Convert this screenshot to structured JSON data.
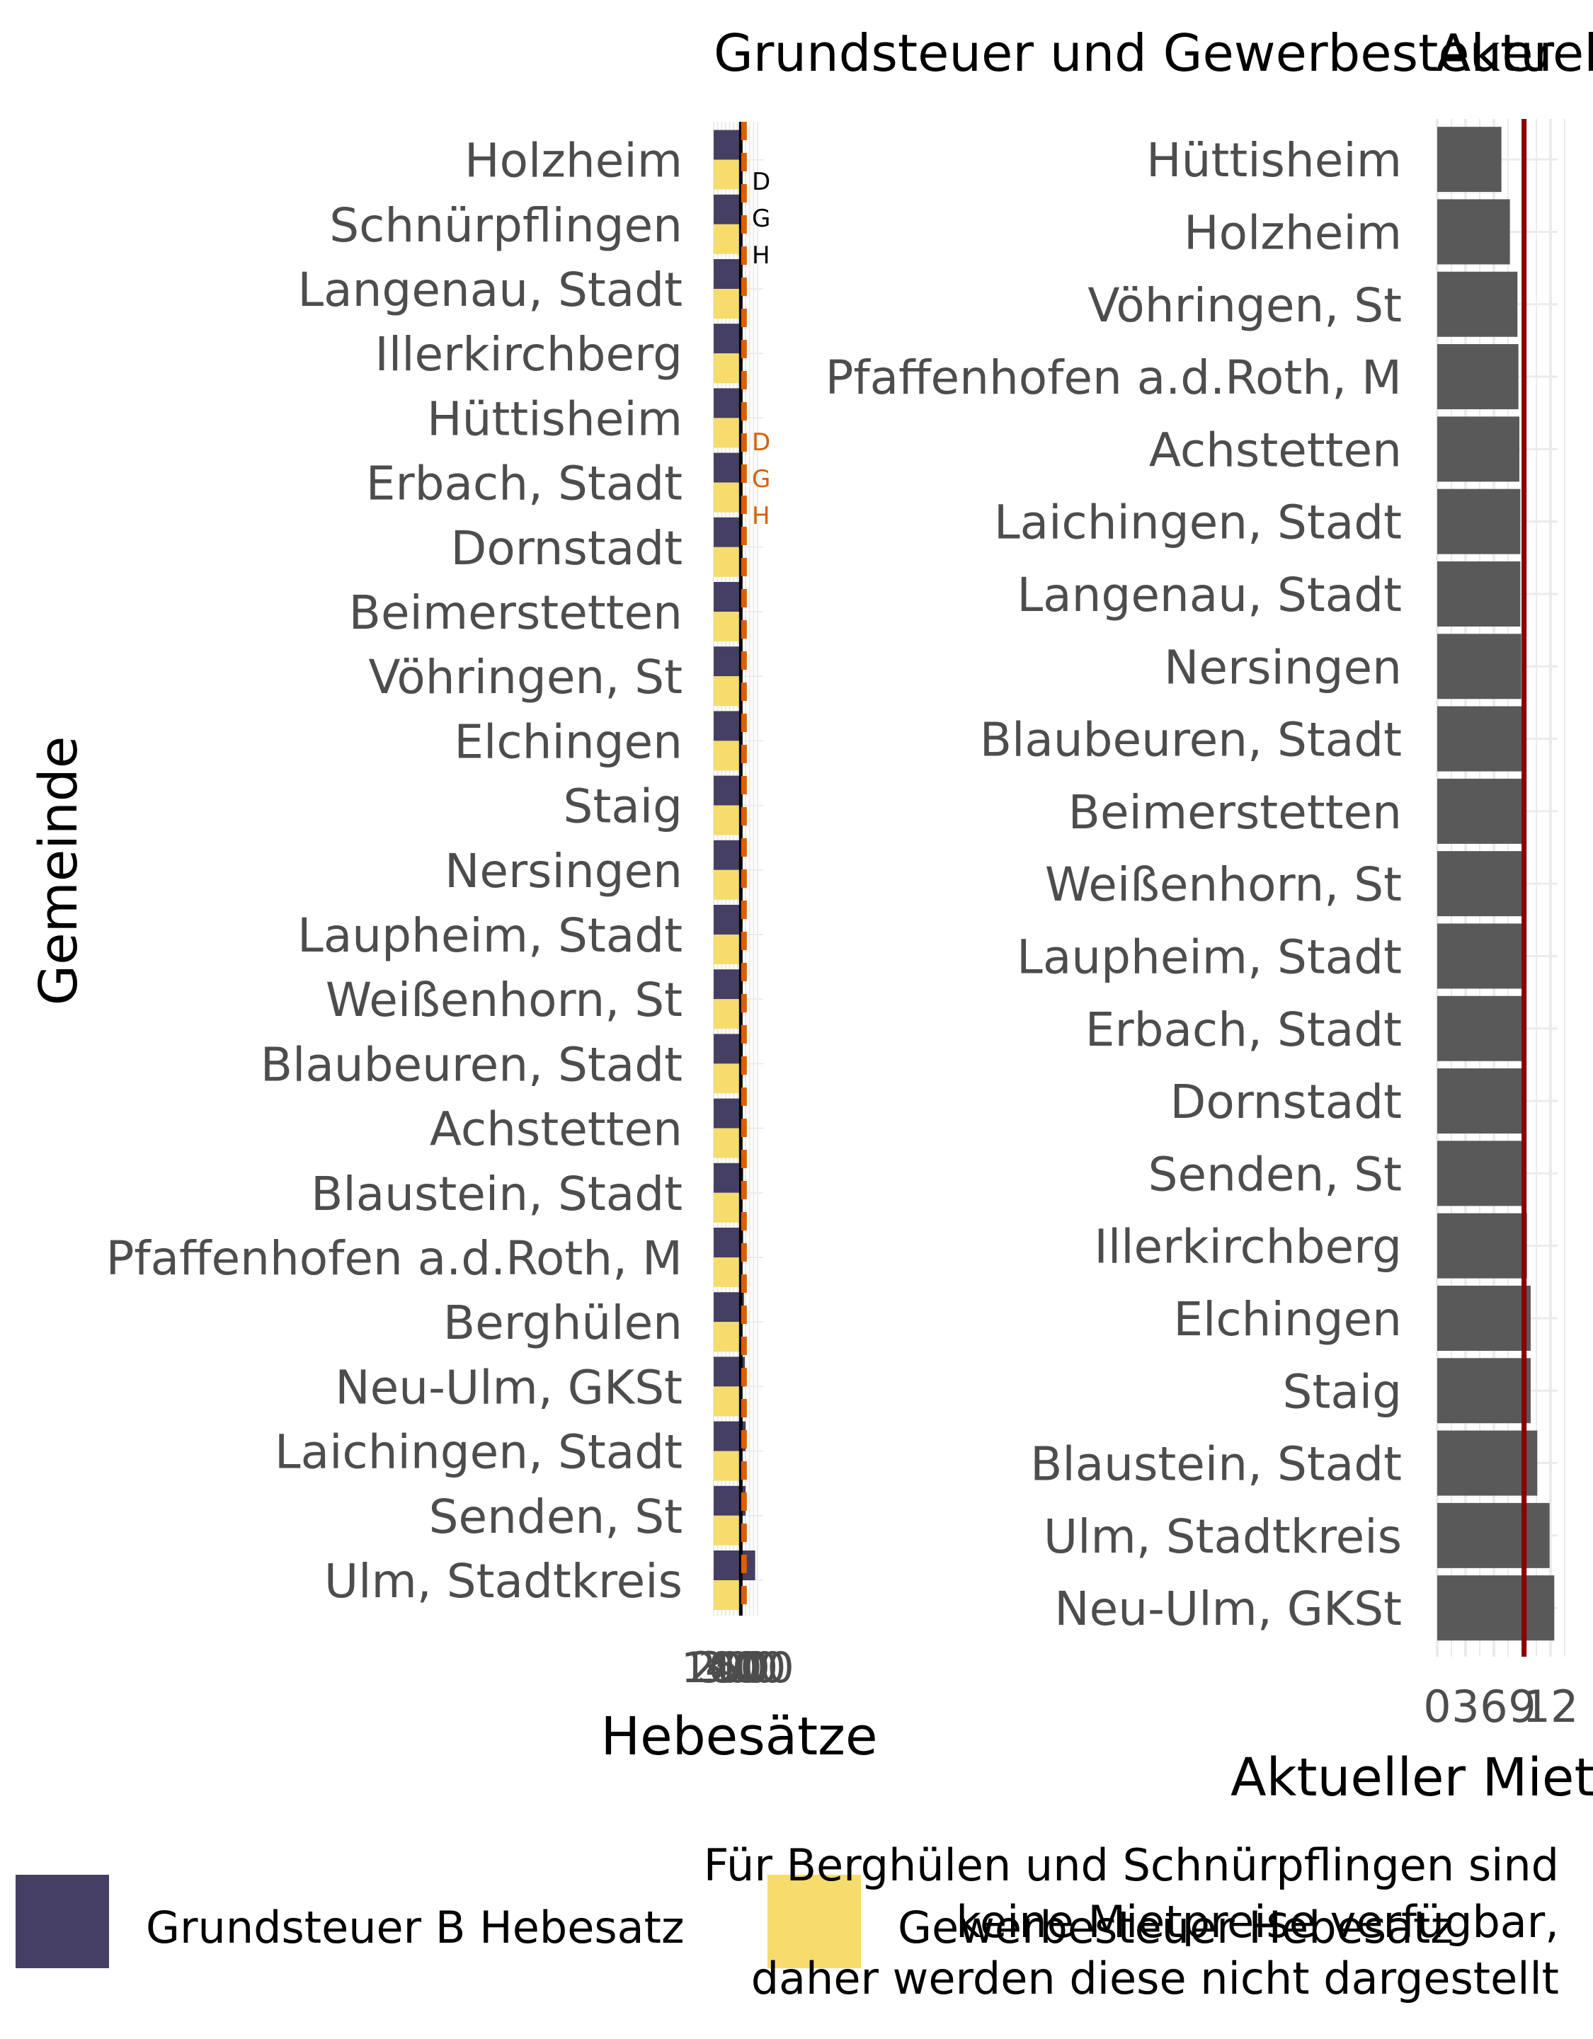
{
  "chart_data": [
    {
      "type": "bar",
      "orientation": "horizontal",
      "title": "Grundsteuer und Gewerbesteuer",
      "xlabel": "Hebesätze",
      "ylabel": "Gemeinde",
      "xlim": [
        0,
        550
      ],
      "x_tick_labels": [
        "100",
        "200",
        "300",
        "400",
        "500"
      ],
      "categories": [
        "Holzheim",
        "Schnürpflingen",
        "Langenau, Stadt",
        "Illerkirchberg",
        "Hüttisheim",
        "Erbach, Stadt",
        "Dornstadt",
        "Beimerstetten",
        "Vöhringen, St",
        "Elchingen",
        "Staig",
        "Nersingen",
        "Laupheim, Stadt",
        "Weißenhorn, St",
        "Blaubeuren, Stadt",
        "Achstetten",
        "Blaustein, Stadt",
        "Pfaffenhofen a.d.Roth, M",
        "Berghülen",
        "Neu-Ulm, GKSt",
        "Laichingen, Stadt",
        "Senden, St",
        "Ulm, Stadtkreis"
      ],
      "series": [
        {
          "name": "Grundsteuer B Hebesatz",
          "color": "#453f63",
          "values": [
            340,
            340,
            340,
            345,
            345,
            350,
            355,
            355,
            360,
            360,
            360,
            360,
            360,
            365,
            365,
            365,
            370,
            370,
            380,
            390,
            400,
            400,
            520
          ]
        },
        {
          "name": "Gewerbesteuer Hebesatz",
          "color": "#f6dc6c",
          "values": [
            340,
            340,
            340,
            340,
            340,
            340,
            340,
            340,
            340,
            340,
            340,
            340,
            340,
            340,
            340,
            340,
            340,
            340,
            340,
            340,
            340,
            340,
            340
          ]
        }
      ],
      "reference_lines": [
        {
          "value": 340,
          "color": "#000000",
          "style": "solid"
        },
        {
          "value": 380,
          "color": "#d95f02",
          "style": "dashed"
        }
      ],
      "annotations": [
        {
          "text": "D",
          "color": "#000000"
        },
        {
          "text": "G",
          "color": "#000000"
        },
        {
          "text": "H",
          "color": "#000000"
        },
        {
          "text": "D",
          "color": "#d95f02"
        },
        {
          "text": "G",
          "color": "#d95f02"
        },
        {
          "text": "H",
          "color": "#d95f02"
        }
      ],
      "legend": {
        "position": "bottom",
        "items": [
          "Grundsteuer B Hebesatz",
          "Gewerbesteuer Hebesatz"
        ]
      },
      "grid": true
    },
    {
      "type": "bar",
      "orientation": "horizontal",
      "title": "Aktueller Mietpreis",
      "xlabel": "Aktueller Mietpreis",
      "ylabel": "",
      "xlim": [
        0,
        13.5
      ],
      "x_ticks": [
        0,
        3,
        6,
        9,
        12
      ],
      "x_tick_labels": [
        "0",
        "3",
        "6",
        "9",
        "12"
      ],
      "categories": [
        "Hüttisheim",
        "Holzheim",
        "Vöhringen, St",
        "Pfaffenhofen a.d.Roth, M",
        "Achstetten",
        "Laichingen, Stadt",
        "Langenau, Stadt",
        "Nersingen",
        "Blaubeuren, Stadt",
        "Beimerstetten",
        "Weißenhorn, St",
        "Laupheim, Stadt",
        "Erbach, Stadt",
        "Dornstadt",
        "Senden, St",
        "Illerkirchberg",
        "Elchingen",
        "Staig",
        "Blaustein, Stadt",
        "Ulm, Stadtkreis",
        "Neu-Ulm, GKSt"
      ],
      "values": [
        6.8,
        7.7,
        8.5,
        8.6,
        8.7,
        8.8,
        8.8,
        8.9,
        9.2,
        9.3,
        9.3,
        9.4,
        9.4,
        9.4,
        9.4,
        9.5,
        9.9,
        9.9,
        10.6,
        11.9,
        12.4
      ],
      "bar_color": "#595959",
      "reference_lines": [
        {
          "value": 9.2,
          "color": "#8b0000",
          "style": "solid"
        }
      ],
      "grid": true
    }
  ],
  "footnote": [
    "Für Berghülen und Schnürpflingen sind",
    "keine Mietpreise verfügbar,",
    "daher werden diese nicht dargestellt"
  ]
}
